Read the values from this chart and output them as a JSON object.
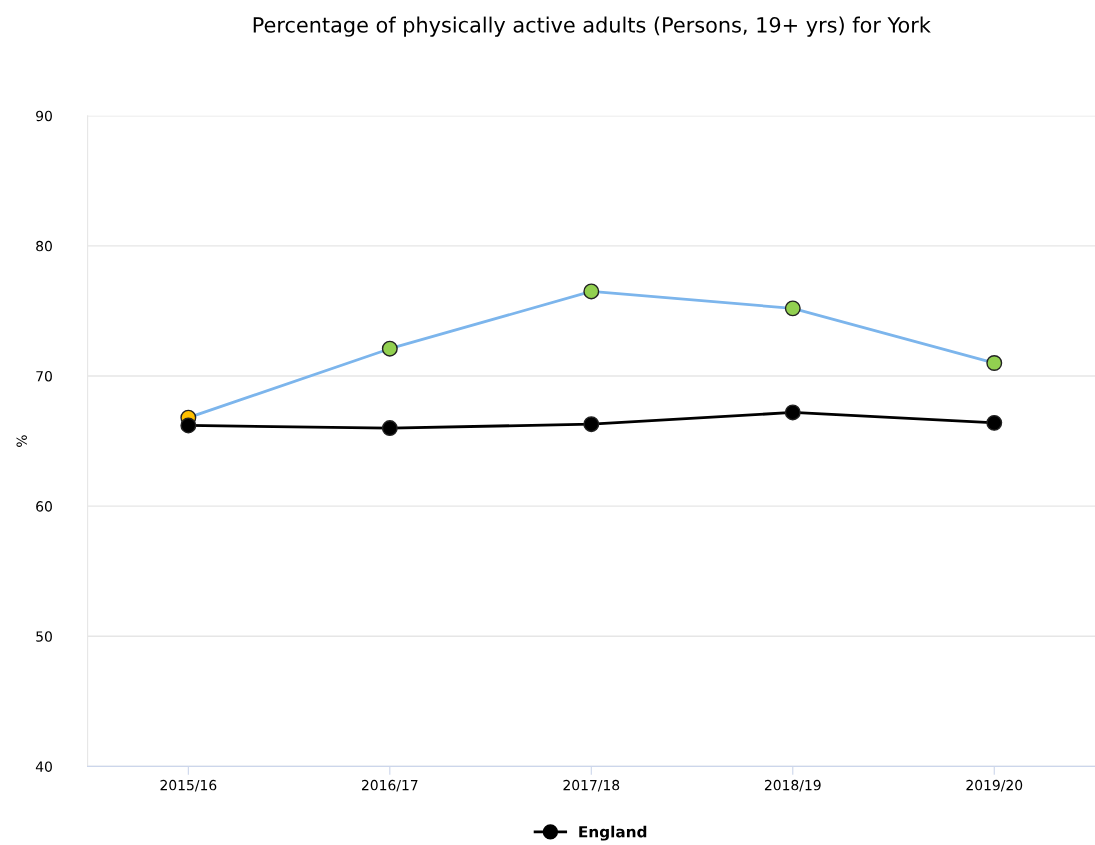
{
  "chart_data": {
    "type": "line",
    "title": "Percentage of physically active adults (Persons, 19+ yrs) for York",
    "ylabel": "%",
    "categories": [
      "2015/16",
      "2016/17",
      "2017/18",
      "2018/19",
      "2019/20"
    ],
    "series": [
      {
        "color": "#7cb5ec",
        "colors": [
          "#ffc000",
          "#92d050",
          "#92d050",
          "#92d050",
          "#92d050"
        ],
        "values": [
          66.8,
          72.1,
          76.5,
          75.2,
          71.0
        ]
      },
      {
        "name": "England",
        "color": "#000000",
        "values": [
          66.2,
          66.0,
          66.3,
          67.2,
          66.4
        ]
      }
    ],
    "ylim": [
      40,
      90
    ],
    "yticks": [
      40,
      50,
      60,
      70,
      80,
      90
    ],
    "grid": "y",
    "legend": "bottom",
    "marker": "circle",
    "line_style": "solid"
  }
}
